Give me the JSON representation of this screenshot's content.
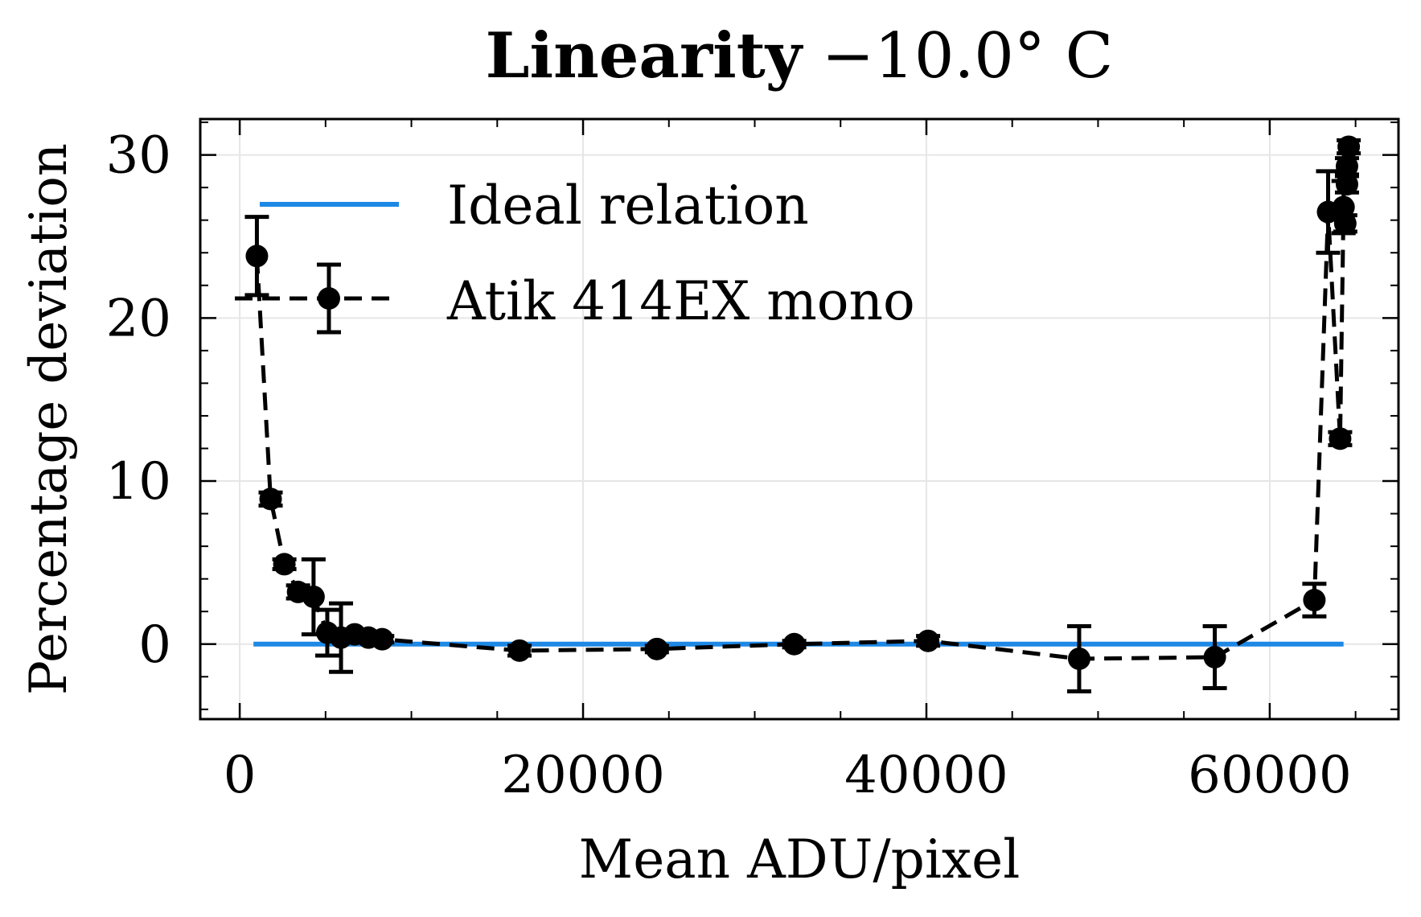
{
  "chart_data": {
    "type": "scatter",
    "title_bold": "Linearity",
    "title_rest": " −10.0° C",
    "xlabel": "Mean ADU/pixel",
    "ylabel": "Percentage deviation",
    "xlim": [
      -2300,
      67500
    ],
    "ylim": [
      -4.6,
      32.2
    ],
    "x_ticks": [
      0,
      20000,
      40000,
      60000
    ],
    "x_tick_labels": [
      "0",
      "20000",
      "40000",
      "60000"
    ],
    "x_minor_step": 5000,
    "y_ticks": [
      0,
      10,
      20,
      30
    ],
    "y_tick_labels": [
      "0",
      "10",
      "20",
      "30"
    ],
    "y_minor_step": 2,
    "grid": true,
    "legend_position": "top-left",
    "colors": {
      "ideal": "#1e88e5",
      "data": "#000000",
      "grid": "#e6e6e6"
    },
    "ideal_relation": {
      "name": "Ideal relation",
      "x": [
        800,
        64300
      ],
      "y": [
        0,
        0
      ]
    },
    "series": [
      {
        "name": "Atik 414EX mono",
        "x": [
          1000,
          1800,
          2600,
          3400,
          4300,
          5100,
          5900,
          6700,
          7500,
          8300,
          16300,
          24300,
          32300,
          40100,
          48900,
          56800,
          62600,
          63400,
          64100,
          64300,
          64400,
          64500,
          64500,
          64600
        ],
        "y": [
          23.8,
          8.9,
          4.9,
          3.2,
          2.9,
          0.7,
          0.4,
          0.6,
          0.4,
          0.3,
          -0.4,
          -0.3,
          0.0,
          0.2,
          -0.9,
          -0.8,
          2.7,
          26.5,
          12.6,
          26.8,
          25.8,
          28.2,
          29.3,
          30.5
        ],
        "err": [
          2.4,
          0.4,
          0.3,
          0.4,
          2.3,
          1.4,
          2.1,
          0.2,
          0.2,
          0.2,
          0.3,
          0.2,
          0.2,
          0.3,
          2.0,
          1.9,
          1.0,
          2.5,
          0.4,
          1.6,
          0.5,
          0.5,
          0.5,
          0.4
        ]
      }
    ]
  }
}
